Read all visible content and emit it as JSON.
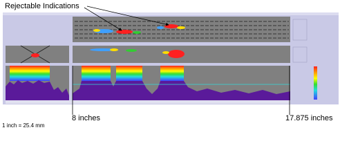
{
  "annotations": {
    "callout": "Rejectable Indications",
    "start": "8 inches",
    "end": "17.875 inches",
    "scale_note": "1 inch = 25.4 mm"
  }
}
